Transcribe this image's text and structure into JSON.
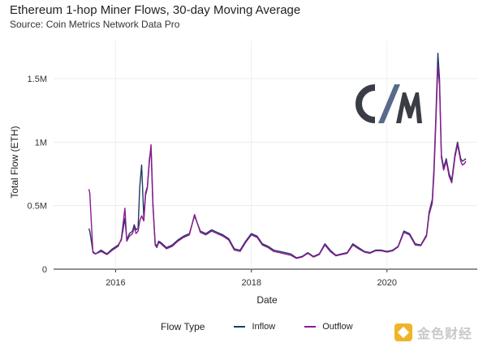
{
  "chart_data": {
    "type": "line",
    "title": "Ethereum 1-hop Miner Flows, 30-day Moving Average",
    "subtitle": "Source: Coin Metrics Network Data Pro",
    "xlabel": "Date",
    "ylabel": "Total Flow (ETH)",
    "xlim": [
      "2015-02-01",
      "2021-05-01"
    ],
    "ylim": [
      0,
      1800000
    ],
    "x_ticks": [
      "2016",
      "2018",
      "2020"
    ],
    "y_ticks": [
      {
        "value": 0,
        "label": "0"
      },
      {
        "value": 500000,
        "label": "0.5M"
      },
      {
        "value": 1000000,
        "label": "1M"
      },
      {
        "value": 1500000,
        "label": "1.5M"
      }
    ],
    "grid": true,
    "legend_title": "Flow Type",
    "legend_position": "bottom",
    "x": [
      "2015-08-10",
      "2015-08-15",
      "2015-09-01",
      "2015-09-15",
      "2015-10-15",
      "2015-11-15",
      "2015-12-15",
      "2016-01-15",
      "2016-02-01",
      "2016-02-20",
      "2016-03-01",
      "2016-03-15",
      "2016-04-01",
      "2016-04-10",
      "2016-04-20",
      "2016-05-01",
      "2016-05-10",
      "2016-05-20",
      "2016-06-01",
      "2016-06-10",
      "2016-06-20",
      "2016-07-01",
      "2016-07-10",
      "2016-07-20",
      "2016-08-01",
      "2016-08-10",
      "2016-08-20",
      "2016-09-01",
      "2016-10-01",
      "2016-11-01",
      "2016-12-01",
      "2017-01-01",
      "2017-02-01",
      "2017-03-01",
      "2017-04-01",
      "2017-05-01",
      "2017-06-01",
      "2017-07-01",
      "2017-08-01",
      "2017-09-01",
      "2017-10-01",
      "2017-11-01",
      "2017-12-01",
      "2018-01-01",
      "2018-02-01",
      "2018-03-01",
      "2018-04-01",
      "2018-05-01",
      "2018-06-01",
      "2018-07-01",
      "2018-08-01",
      "2018-09-01",
      "2018-10-01",
      "2018-11-01",
      "2018-12-01",
      "2019-01-01",
      "2019-02-01",
      "2019-03-01",
      "2019-04-01",
      "2019-05-01",
      "2019-06-01",
      "2019-07-01",
      "2019-08-01",
      "2019-09-01",
      "2019-10-01",
      "2019-11-01",
      "2019-12-01",
      "2020-01-01",
      "2020-02-01",
      "2020-03-01",
      "2020-04-01",
      "2020-05-01",
      "2020-06-01",
      "2020-07-01",
      "2020-08-01",
      "2020-08-15",
      "2020-09-01",
      "2020-09-10",
      "2020-09-20",
      "2020-10-01",
      "2020-10-10",
      "2020-10-20",
      "2020-11-01",
      "2020-11-15",
      "2020-12-01",
      "2020-12-15",
      "2021-01-01",
      "2021-01-15",
      "2021-02-01",
      "2021-02-10",
      "2021-02-20",
      "2021-03-01"
    ],
    "series": [
      {
        "name": "Inflow",
        "color": "#1f3b66",
        "values": [
          320000,
          300000,
          140000,
          120000,
          150000,
          120000,
          160000,
          190000,
          230000,
          400000,
          230000,
          280000,
          300000,
          350000,
          310000,
          320000,
          650000,
          820000,
          400000,
          600000,
          650000,
          870000,
          950000,
          500000,
          200000,
          180000,
          220000,
          210000,
          170000,
          190000,
          230000,
          260000,
          280000,
          420000,
          300000,
          280000,
          310000,
          290000,
          270000,
          240000,
          160000,
          150000,
          220000,
          280000,
          260000,
          200000,
          180000,
          150000,
          140000,
          130000,
          120000,
          90000,
          100000,
          130000,
          100000,
          120000,
          200000,
          150000,
          110000,
          120000,
          130000,
          200000,
          170000,
          140000,
          130000,
          150000,
          150000,
          140000,
          150000,
          180000,
          300000,
          280000,
          200000,
          190000,
          270000,
          450000,
          550000,
          800000,
          1200000,
          1700000,
          1500000,
          900000,
          800000,
          870000,
          750000,
          700000,
          900000,
          1000000,
          870000,
          850000,
          860000,
          870000
        ]
      },
      {
        "name": "Outflow",
        "color": "#8b1a8f",
        "values": [
          630000,
          600000,
          130000,
          120000,
          140000,
          115000,
          150000,
          180000,
          240000,
          480000,
          220000,
          260000,
          280000,
          330000,
          280000,
          300000,
          380000,
          420000,
          380000,
          580000,
          640000,
          850000,
          980000,
          520000,
          190000,
          170000,
          210000,
          200000,
          160000,
          180000,
          220000,
          250000,
          270000,
          430000,
          290000,
          270000,
          300000,
          280000,
          260000,
          230000,
          150000,
          140000,
          210000,
          270000,
          250000,
          190000,
          170000,
          140000,
          130000,
          120000,
          110000,
          85000,
          95000,
          125000,
          95000,
          115000,
          190000,
          140000,
          105000,
          115000,
          125000,
          190000,
          160000,
          135000,
          125000,
          145000,
          145000,
          135000,
          145000,
          175000,
          290000,
          270000,
          190000,
          185000,
          260000,
          430000,
          520000,
          750000,
          1150000,
          1600000,
          1450000,
          880000,
          780000,
          850000,
          730000,
          680000,
          880000,
          980000,
          850000,
          820000,
          830000,
          850000
        ]
      }
    ]
  },
  "legend": {
    "title": "Flow Type",
    "items": [
      "Inflow",
      "Outflow"
    ]
  },
  "logo": {
    "text": "CM"
  },
  "watermark": {
    "text": "金色财经"
  }
}
